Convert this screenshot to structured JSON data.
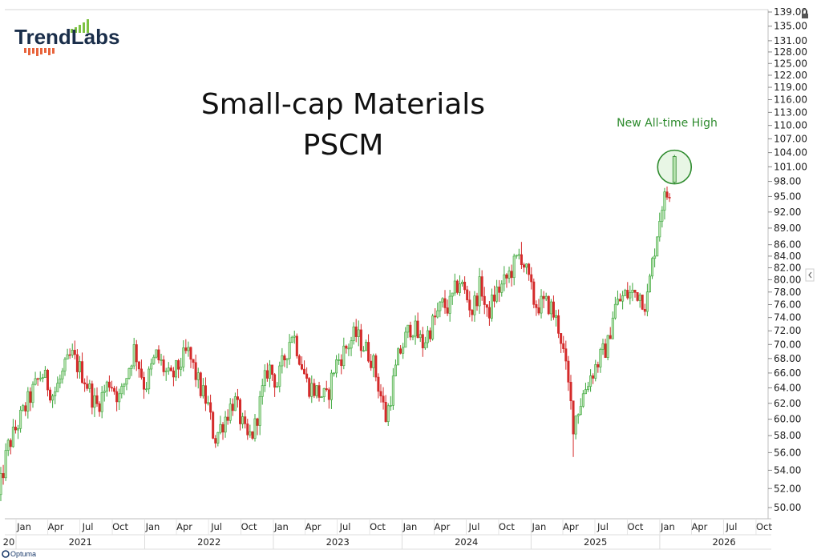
{
  "brand": {
    "name": "TrendLabs"
  },
  "credit": {
    "text": "Optuma"
  },
  "chart_data": {
    "type": "ohlc",
    "title": "Small-cap Materials",
    "subtitle": "PSCM",
    "annotation": "New All-time High",
    "y_axis": {
      "side": "right",
      "scale": "log",
      "ylim": [
        49.5,
        139.5
      ],
      "ticks": [
        "139.00",
        "135.00",
        "131.00",
        "128.00",
        "125.00",
        "122.00",
        "119.00",
        "116.00",
        "113.00",
        "110.00",
        "107.00",
        "104.00",
        "101.00",
        "98.00",
        "95.00",
        "92.00",
        "89.00",
        "86.00",
        "84.00",
        "82.00",
        "80.00",
        "78.00",
        "76.00",
        "74.00",
        "72.00",
        "70.00",
        "68.00",
        "66.00",
        "64.00",
        "62.00",
        "60.00",
        "58.00",
        "56.00",
        "54.00",
        "52.00",
        "50.00"
      ]
    },
    "x_axis": {
      "months": [
        {
          "date": "2021-01",
          "label": "Jan"
        },
        {
          "date": "2021-04",
          "label": "Apr"
        },
        {
          "date": "2021-07",
          "label": "Jul"
        },
        {
          "date": "2021-10",
          "label": "Oct"
        },
        {
          "date": "2022-01",
          "label": "Jan"
        },
        {
          "date": "2022-04",
          "label": "Apr"
        },
        {
          "date": "2022-07",
          "label": "Jul"
        },
        {
          "date": "2022-10",
          "label": "Oct"
        },
        {
          "date": "2023-01",
          "label": "Jan"
        },
        {
          "date": "2023-04",
          "label": "Apr"
        },
        {
          "date": "2023-07",
          "label": "Jul"
        },
        {
          "date": "2023-10",
          "label": "Oct"
        },
        {
          "date": "2024-01",
          "label": "Jan"
        },
        {
          "date": "2024-04",
          "label": "Apr"
        },
        {
          "date": "2024-07",
          "label": "Jul"
        },
        {
          "date": "2024-10",
          "label": "Oct"
        },
        {
          "date": "2025-01",
          "label": "Jan"
        },
        {
          "date": "2025-04",
          "label": "Apr"
        },
        {
          "date": "2025-07",
          "label": "Jul"
        },
        {
          "date": "2025-10",
          "label": "Oct"
        },
        {
          "date": "2026-01",
          "label": "Jan"
        },
        {
          "date": "2026-04",
          "label": "Apr"
        },
        {
          "date": "2026-07",
          "label": "Jul"
        },
        {
          "date": "2026-10",
          "label": "Oct"
        }
      ],
      "years": [
        {
          "date": "2020-09",
          "label": "20"
        },
        {
          "date": "2021-01",
          "label": "2021"
        },
        {
          "date": "2022-01",
          "label": "2022"
        },
        {
          "date": "2023-01",
          "label": "2023"
        },
        {
          "date": "2024-01",
          "label": "2024"
        },
        {
          "date": "2025-01",
          "label": "2025"
        },
        {
          "date": "2026-01",
          "label": "2026"
        }
      ]
    },
    "price_path": [
      [
        "2020-10-20",
        51.0
      ],
      [
        "2020-11-15",
        56.5
      ],
      [
        "2021-01-10",
        62.0
      ],
      [
        "2021-02-20",
        66.0
      ],
      [
        "2021-03-25",
        63.0
      ],
      [
        "2021-05-15",
        68.5
      ],
      [
        "2021-06-20",
        65.5
      ],
      [
        "2021-07-25",
        61.5
      ],
      [
        "2021-09-01",
        65.0
      ],
      [
        "2021-09-30",
        62.5
      ],
      [
        "2021-11-10",
        69.5
      ],
      [
        "2021-12-10",
        64.0
      ],
      [
        "2022-01-10",
        68.5
      ],
      [
        "2022-02-20",
        65.0
      ],
      [
        "2022-04-10",
        69.0
      ],
      [
        "2022-05-15",
        64.0
      ],
      [
        "2022-06-05",
        62.0
      ],
      [
        "2022-06-25",
        57.5
      ],
      [
        "2022-08-20",
        62.5
      ],
      [
        "2022-09-25",
        57.5
      ],
      [
        "2022-10-15",
        58.5
      ],
      [
        "2022-11-25",
        67.0
      ],
      [
        "2022-12-20",
        64.5
      ],
      [
        "2023-02-01",
        72.0
      ],
      [
        "2023-03-15",
        64.5
      ],
      [
        "2023-05-10",
        62.5
      ],
      [
        "2023-06-01",
        67.0
      ],
      [
        "2023-07-30",
        71.5
      ],
      [
        "2023-09-15",
        68.0
      ],
      [
        "2023-10-25",
        60.0
      ],
      [
        "2023-11-30",
        68.5
      ],
      [
        "2024-01-05",
        73.0
      ],
      [
        "2024-02-05",
        70.0
      ],
      [
        "2024-04-01",
        76.0
      ],
      [
        "2024-04-20",
        75.5
      ],
      [
        "2024-05-20",
        80.0
      ],
      [
        "2024-06-25",
        75.0
      ],
      [
        "2024-07-20",
        79.5
      ],
      [
        "2024-08-05",
        74.0
      ],
      [
        "2024-09-01",
        78.0
      ],
      [
        "2024-09-20",
        79.0
      ],
      [
        "2024-11-10",
        84.5
      ],
      [
        "2024-12-20",
        76.0
      ],
      [
        "2025-01-31",
        76.0
      ],
      [
        "2025-03-01",
        72.0
      ],
      [
        "2025-04-08",
        59.5
      ],
      [
        "2025-05-20",
        65.0
      ],
      [
        "2025-07-15",
        70.0
      ],
      [
        "2025-08-01",
        75.5
      ],
      [
        "2025-09-01",
        77.5
      ],
      [
        "2025-10-10",
        78.0
      ],
      [
        "2025-11-01",
        76.0
      ],
      [
        "2025-11-25",
        85.5
      ],
      [
        "2025-12-15",
        93.5
      ],
      [
        "2026-01-05",
        96.0
      ],
      [
        "2026-01-20",
        101.5
      ]
    ],
    "labeled_points": [
      {
        "date": "2025-04-08",
        "low": 55.5
      },
      {
        "date": "2024-11-10",
        "high": 86.5
      },
      {
        "date": "2026-01-20",
        "high": 103.5,
        "low": 97.5
      }
    ]
  }
}
